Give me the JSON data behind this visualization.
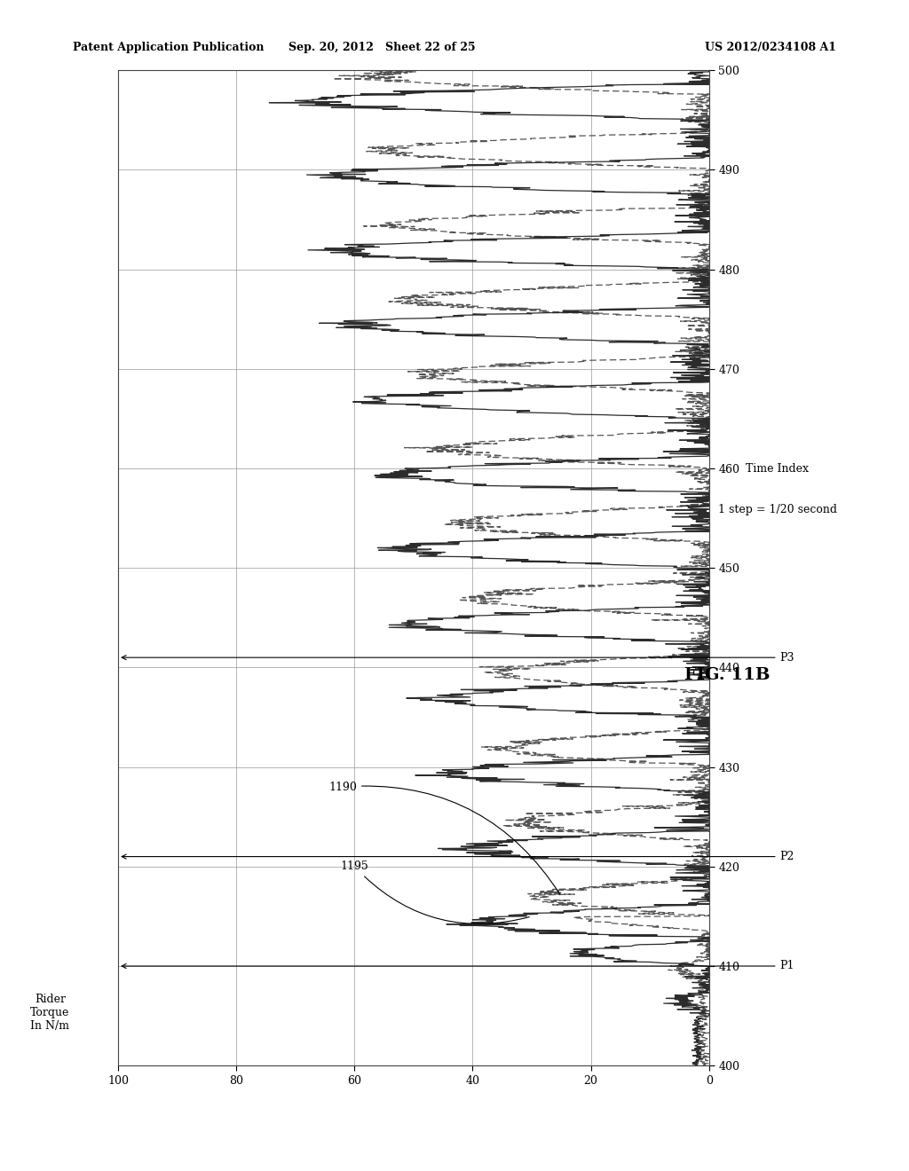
{
  "title_left": "Patent Application Publication",
  "title_center": "Sep. 20, 2012   Sheet 22 of 25",
  "title_right": "US 2012/0234108 A1",
  "fig_label": "FIG. 11B",
  "xlabel_line1": "Time Index",
  "xlabel_line2": "1 step = 1/20 second",
  "ylabel": "Rider\nTorque\nIn N/m",
  "xlim": [
    400,
    500
  ],
  "ylim": [
    0,
    100
  ],
  "xticks": [
    400,
    410,
    420,
    430,
    440,
    450,
    460,
    470,
    480,
    490,
    500
  ],
  "yticks": [
    0,
    20,
    40,
    60,
    80,
    100
  ],
  "label_1195": "1195",
  "label_1190": "1190",
  "label_p1": "P1",
  "label_p2": "P2",
  "label_p3": "P3",
  "background_color": "#ffffff",
  "line_color": "#2c2c2c",
  "dash_color": "#555555"
}
